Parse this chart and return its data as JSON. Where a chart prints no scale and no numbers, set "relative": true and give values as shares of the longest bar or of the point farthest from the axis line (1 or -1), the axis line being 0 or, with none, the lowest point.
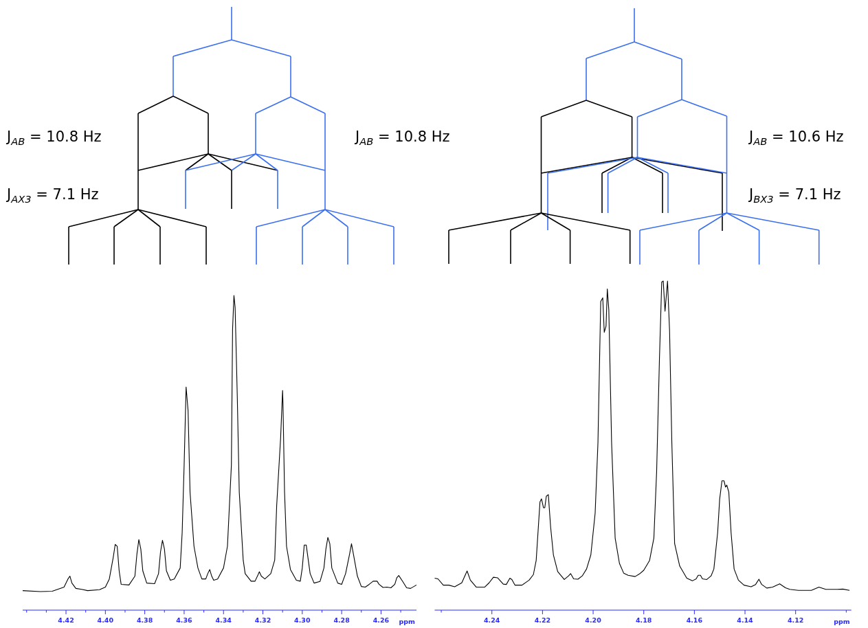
{
  "chart_data": [
    {
      "type": "line",
      "relative": true,
      "xlabel": "ppm",
      "xlim": [
        4.442,
        4.242
      ],
      "xticks": [
        {
          "value": 4.44,
          "label": null
        },
        {
          "value": 4.43,
          "label": null
        },
        {
          "value": 4.42,
          "label": "4.42"
        },
        {
          "value": 4.41,
          "label": null
        },
        {
          "value": 4.4,
          "label": "4.40"
        },
        {
          "value": 4.39,
          "label": null
        },
        {
          "value": 4.38,
          "label": "4.38"
        },
        {
          "value": 4.37,
          "label": null
        },
        {
          "value": 4.36,
          "label": "4.36"
        },
        {
          "value": 4.35,
          "label": null
        },
        {
          "value": 4.34,
          "label": "4.34"
        },
        {
          "value": 4.33,
          "label": null
        },
        {
          "value": 4.32,
          "label": "4.32"
        },
        {
          "value": 4.31,
          "label": null
        },
        {
          "value": 4.3,
          "label": "4.30"
        },
        {
          "value": 4.29,
          "label": null
        },
        {
          "value": 4.28,
          "label": "4.28"
        },
        {
          "value": 4.27,
          "label": null
        },
        {
          "value": 4.26,
          "label": "4.26"
        },
        {
          "value": 4.25,
          "label": null
        }
      ],
      "annotations": [
        "J$_{AB}$ = 10.8 Hz",
        "J$_{AX3}$ = 7.1 Hz",
        "J$_{AB}$ = 10.8 Hz"
      ],
      "x": [
        4.442,
        4.433,
        4.427,
        4.421,
        4.419,
        4.418,
        4.417,
        4.415,
        4.412,
        4.409,
        4.403,
        4.4,
        4.398,
        4.396,
        4.395,
        4.394,
        4.393,
        4.392,
        4.388,
        4.385,
        4.384,
        4.383,
        4.382,
        4.381,
        4.379,
        4.375,
        4.373,
        4.372,
        4.371,
        4.37,
        4.369,
        4.367,
        4.365,
        4.362,
        4.361,
        4.36,
        4.359,
        4.358,
        4.357,
        4.355,
        4.353,
        4.351,
        4.349,
        4.348,
        4.347,
        4.346,
        4.345,
        4.343,
        4.34,
        4.338,
        4.336,
        4.3354,
        4.3347,
        4.3341,
        4.333,
        4.332,
        4.33,
        4.329,
        4.326,
        4.324,
        4.3225,
        4.3218,
        4.3208,
        4.319,
        4.316,
        4.314,
        4.313,
        4.311,
        4.31,
        4.3098,
        4.309,
        4.308,
        4.306,
        4.303,
        4.301,
        4.3,
        4.299,
        4.298,
        4.296,
        4.294,
        4.291,
        4.289,
        4.288,
        4.287,
        4.286,
        4.285,
        4.282,
        4.28,
        4.278,
        4.276,
        4.275,
        4.274,
        4.272,
        4.27,
        4.268,
        4.266,
        4.264,
        4.262,
        4.261,
        4.259,
        4.257,
        4.255,
        4.253,
        4.252,
        4.251,
        4.249,
        4.247,
        4.245,
        4.242
      ],
      "series": [
        {
          "color": "#000000",
          "values": [
            0.062,
            0.059,
            0.06,
            0.073,
            0.099,
            0.108,
            0.086,
            0.069,
            0.066,
            0.062,
            0.065,
            0.073,
            0.099,
            0.168,
            0.209,
            0.203,
            0.125,
            0.082,
            0.08,
            0.108,
            0.177,
            0.224,
            0.194,
            0.125,
            0.086,
            0.084,
            0.116,
            0.185,
            0.222,
            0.194,
            0.125,
            0.095,
            0.099,
            0.134,
            0.246,
            0.461,
            0.709,
            0.634,
            0.375,
            0.203,
            0.134,
            0.099,
            0.099,
            0.116,
            0.129,
            0.108,
            0.095,
            0.099,
            0.134,
            0.203,
            0.461,
            0.892,
            1.0,
            0.961,
            0.677,
            0.375,
            0.159,
            0.116,
            0.092,
            0.092,
            0.112,
            0.122,
            0.108,
            0.099,
            0.116,
            0.159,
            0.332,
            0.547,
            0.698,
            0.659,
            0.375,
            0.203,
            0.129,
            0.095,
            0.092,
            0.134,
            0.207,
            0.207,
            0.116,
            0.086,
            0.091,
            0.134,
            0.194,
            0.231,
            0.211,
            0.134,
            0.086,
            0.082,
            0.116,
            0.177,
            0.211,
            0.177,
            0.108,
            0.075,
            0.073,
            0.082,
            0.092,
            0.092,
            0.082,
            0.072,
            0.073,
            0.071,
            0.082,
            0.103,
            0.11,
            0.091,
            0.071,
            0.069,
            0.08
          ]
        }
      ]
    },
    {
      "type": "line",
      "relative": true,
      "xlabel": "ppm",
      "xlim": [
        4.2626,
        4.098
      ],
      "xticks": [
        {
          "value": 4.26,
          "label": null
        },
        {
          "value": 4.24,
          "label": "4.24"
        },
        {
          "value": 4.22,
          "label": "4.22"
        },
        {
          "value": 4.2,
          "label": "4.20"
        },
        {
          "value": 4.18,
          "label": "4.18"
        },
        {
          "value": 4.16,
          "label": "4.16"
        },
        {
          "value": 4.14,
          "label": "4.14"
        },
        {
          "value": 4.12,
          "label": "4.12"
        },
        {
          "value": 4.1,
          "label": null
        }
      ],
      "annotations": [
        "J$_{AB}$ = 10.6 Hz",
        "J$_{BX3}$ = 7.1 Hz"
      ],
      "x": [
        4.2626,
        4.2613,
        4.2592,
        4.257,
        4.2547,
        4.2519,
        4.2498,
        4.2485,
        4.2462,
        4.2428,
        4.2411,
        4.2394,
        4.2377,
        4.2355,
        4.2343,
        4.2329,
        4.2321,
        4.2309,
        4.2281,
        4.2253,
        4.2236,
        4.2225,
        4.221,
        4.2204,
        4.2196,
        4.2191,
        4.2185,
        4.2177,
        4.2168,
        4.2157,
        4.214,
        4.2114,
        4.2097,
        4.2089,
        4.2077,
        4.206,
        4.2043,
        4.2026,
        4.2009,
        4.1992,
        4.1981,
        4.197,
        4.1962,
        4.1956,
        4.1949,
        4.1944,
        4.1938,
        4.1927,
        4.1913,
        4.1896,
        4.1879,
        4.1862,
        4.1834,
        4.1817,
        4.18,
        4.1777,
        4.176,
        4.1749,
        4.1738,
        4.1729,
        4.1723,
        4.1716,
        4.1706,
        4.1698,
        4.1689,
        4.1678,
        4.1658,
        4.163,
        4.1608,
        4.1593,
        4.1585,
        4.1576,
        4.1568,
        4.1551,
        4.1534,
        4.1523,
        4.1508,
        4.15,
        4.1491,
        4.1483,
        4.1477,
        4.1472,
        4.1464,
        4.1455,
        4.1443,
        4.1426,
        4.1404,
        4.1376,
        4.1358,
        4.1345,
        4.1334,
        4.1314,
        4.1291,
        4.1263,
        4.124,
        4.1223,
        4.1189,
        4.1138,
        4.1108,
        4.1081,
        4.1036,
        4.1013,
        4.0987
      ],
      "series": [
        {
          "color": "#000000",
          "values": [
            0.097,
            0.095,
            0.076,
            0.076,
            0.071,
            0.083,
            0.119,
            0.091,
            0.07,
            0.07,
            0.083,
            0.1,
            0.098,
            0.079,
            0.078,
            0.097,
            0.093,
            0.076,
            0.076,
            0.091,
            0.108,
            0.151,
            0.329,
            0.338,
            0.311,
            0.311,
            0.346,
            0.351,
            0.253,
            0.168,
            0.117,
            0.093,
            0.104,
            0.111,
            0.095,
            0.094,
            0.104,
            0.125,
            0.168,
            0.295,
            0.508,
            0.938,
            0.949,
            0.844,
            0.863,
            0.976,
            0.912,
            0.508,
            0.219,
            0.142,
            0.112,
            0.106,
            0.102,
            0.11,
            0.121,
            0.151,
            0.219,
            0.423,
            0.763,
            0.997,
            1.0,
            0.908,
            1.0,
            0.849,
            0.508,
            0.202,
            0.134,
            0.097,
            0.089,
            0.095,
            0.106,
            0.106,
            0.095,
            0.093,
            0.104,
            0.125,
            0.236,
            0.338,
            0.393,
            0.393,
            0.374,
            0.38,
            0.359,
            0.236,
            0.125,
            0.091,
            0.076,
            0.071,
            0.078,
            0.094,
            0.078,
            0.067,
            0.07,
            0.08,
            0.068,
            0.063,
            0.06,
            0.06,
            0.07,
            0.063,
            0.063,
            0.064,
            0.06
          ]
        }
      ]
    }
  ]
}
